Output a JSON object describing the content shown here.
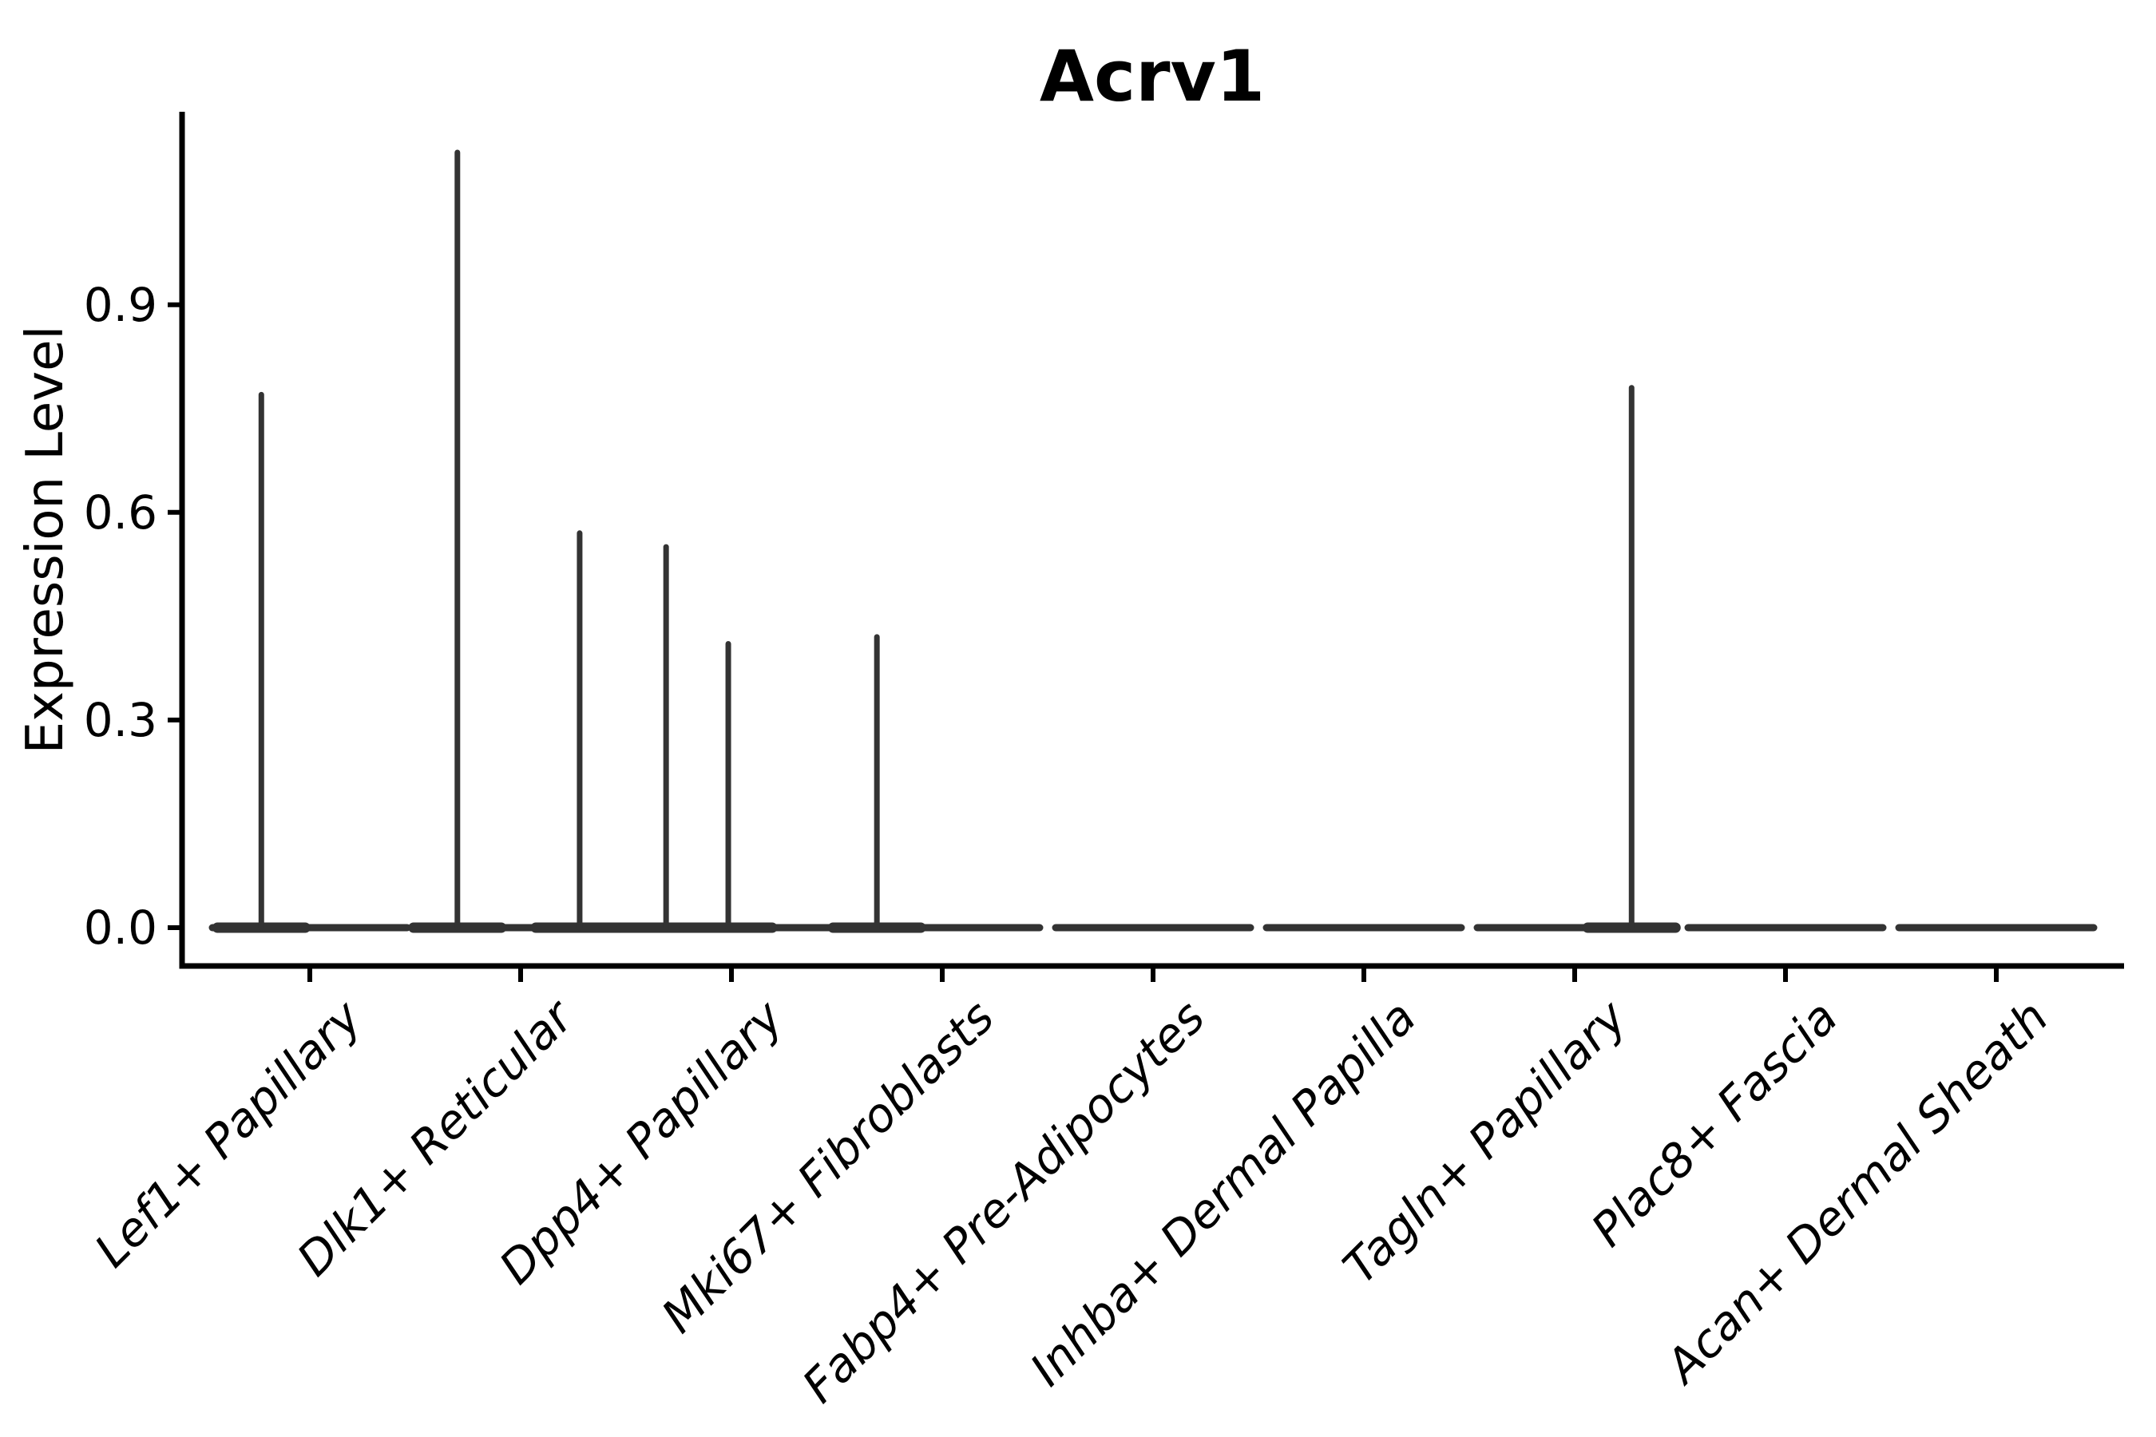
{
  "title": "Acrv1",
  "y_axis": {
    "label": "Expression Level",
    "tick_labels": [
      "0.0",
      "0.3",
      "0.6",
      "0.9"
    ]
  },
  "chart_data": {
    "type": "violin",
    "title": "Acrv1",
    "xlabel": "",
    "ylabel": "Expression Level",
    "yticks": [
      0.0,
      0.3,
      0.6,
      0.9
    ],
    "ylim": [
      -0.05,
      1.18
    ],
    "grid": false,
    "legend": "none",
    "categories": [
      "Lef1+ Papillary",
      "Dlk1+ Reticular",
      "Dpp4+ Papillary",
      "Mki67+ Fibroblasts",
      "Fabp4+ Pre-Adipocytes",
      "Inhba+ Dermal Papilla",
      "Tagln+ Papillary",
      "Plac8+ Fascia",
      "Acan+ Dermal Sheath"
    ],
    "violins": [
      {
        "category": "Lef1+ Papillary",
        "zero_baseline": true,
        "max_expression": 0.77,
        "spikes": [
          {
            "offset_frac": -0.23,
            "value": 0.77
          }
        ]
      },
      {
        "category": "Dlk1+ Reticular",
        "zero_baseline": true,
        "max_expression": 1.12,
        "spikes": [
          {
            "offset_frac": -0.3,
            "value": 1.12
          },
          {
            "offset_frac": 0.28,
            "value": 0.57
          }
        ]
      },
      {
        "category": "Dpp4+ Papillary",
        "zero_baseline": true,
        "max_expression": 0.55,
        "spikes": [
          {
            "offset_frac": -0.31,
            "value": 0.55
          },
          {
            "offset_frac": -0.015,
            "value": 0.41
          }
        ]
      },
      {
        "category": "Mki67+ Fibroblasts",
        "zero_baseline": true,
        "max_expression": 0.42,
        "spikes": [
          {
            "offset_frac": -0.31,
            "value": 0.42
          }
        ]
      },
      {
        "category": "Fabp4+ Pre-Adipocytes",
        "zero_baseline": true,
        "max_expression": 0.0,
        "spikes": []
      },
      {
        "category": "Inhba+ Dermal Papilla",
        "zero_baseline": true,
        "max_expression": 0.0,
        "spikes": []
      },
      {
        "category": "Tagln+ Papillary",
        "zero_baseline": true,
        "max_expression": 0.78,
        "spikes": [
          {
            "offset_frac": 0.27,
            "value": 0.78
          }
        ]
      },
      {
        "category": "Plac8+ Fascia",
        "zero_baseline": true,
        "max_expression": 0.0,
        "spikes": []
      },
      {
        "category": "Acan+ Dermal Sheath",
        "zero_baseline": true,
        "max_expression": 0.0,
        "spikes": []
      }
    ],
    "colors": {
      "violin_stroke": "#333333",
      "axis": "#000000"
    }
  }
}
